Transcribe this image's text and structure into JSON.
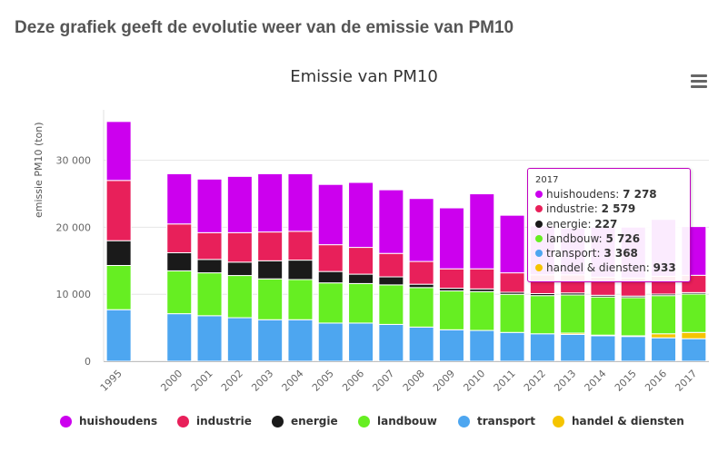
{
  "page": {
    "heading": "Deze grafiek geeft de evolutie weer van de emissie van PM10"
  },
  "chart_data": {
    "type": "bar",
    "stacked": true,
    "title": "Emissie van PM10",
    "ylabel": "emissie PM10 (ton)",
    "xlabel": "",
    "ylim": [
      0,
      37000
    ],
    "yticks": [
      0,
      10000,
      20000,
      30000
    ],
    "ytick_labels": [
      "0",
      "10 000",
      "20 000",
      "30 000"
    ],
    "grid": true,
    "legend_position": "bottom",
    "categories": [
      "1995",
      "",
      "2000",
      "2001",
      "2002",
      "2003",
      "2004",
      "2005",
      "2006",
      "2007",
      "2008",
      "2009",
      "2010",
      "2011",
      "2012",
      "2013",
      "2014",
      "2015",
      "2016",
      "2017"
    ],
    "series": [
      {
        "name": "transport",
        "color": "#4da6f0",
        "values": [
          7700,
          null,
          7100,
          6800,
          6500,
          6200,
          6200,
          5700,
          5700,
          5500,
          5100,
          4700,
          4600,
          4300,
          4100,
          4000,
          3800,
          3700,
          3500,
          3368
        ]
      },
      {
        "name": "handel & diensten",
        "color": "#f5c400",
        "values": [
          0,
          null,
          0,
          0,
          0,
          0,
          0,
          0,
          0,
          0,
          0,
          0,
          0,
          0,
          0,
          200,
          100,
          100,
          600,
          933
        ]
      },
      {
        "name": "landbouw",
        "color": "#66ee22",
        "values": [
          6600,
          null,
          6400,
          6400,
          6300,
          6100,
          6000,
          6000,
          5900,
          5900,
          5900,
          5800,
          5800,
          5700,
          5700,
          5700,
          5700,
          5700,
          5700,
          5726
        ]
      },
      {
        "name": "energie",
        "color": "#1a1a1a",
        "values": [
          3700,
          null,
          2700,
          2000,
          2000,
          2700,
          2900,
          1700,
          1400,
          1200,
          500,
          400,
          400,
          300,
          300,
          300,
          250,
          230,
          230,
          227
        ]
      },
      {
        "name": "industrie",
        "color": "#e8205a",
        "values": [
          9000,
          null,
          4300,
          4000,
          4400,
          4300,
          4300,
          4000,
          4000,
          3500,
          3400,
          2900,
          3000,
          2900,
          2800,
          2700,
          2700,
          2700,
          2650,
          2579
        ]
      },
      {
        "name": "huishoudens",
        "color": "#cc00ee",
        "values": [
          8800,
          null,
          7500,
          8000,
          8400,
          8700,
          8600,
          9000,
          9700,
          9500,
          9400,
          9100,
          11200,
          8600,
          7300,
          7000,
          7500,
          7600,
          8500,
          7278
        ]
      }
    ],
    "tooltip": {
      "title": "2017",
      "rows": [
        {
          "label": "huishoudens",
          "value": "7 278",
          "color": "#cc00ee"
        },
        {
          "label": "industrie",
          "value": "2 579",
          "color": "#e8205a"
        },
        {
          "label": "energie",
          "value": "227",
          "color": "#1a1a1a"
        },
        {
          "label": "landbouw",
          "value": "5 726",
          "color": "#66ee22"
        },
        {
          "label": "transport",
          "value": "3 368",
          "color": "#4da6f0"
        },
        {
          "label": "handel & diensten",
          "value": "933",
          "color": "#f5c400"
        }
      ],
      "highlight_category": "2017"
    }
  },
  "legend": {
    "items": [
      {
        "label": "huishoudens",
        "color": "#cc00ee"
      },
      {
        "label": "industrie",
        "color": "#e8205a"
      },
      {
        "label": "energie",
        "color": "#1a1a1a"
      },
      {
        "label": "landbouw",
        "color": "#66ee22"
      },
      {
        "label": "transport",
        "color": "#4da6f0"
      },
      {
        "label": "handel & diensten",
        "color": "#f5c400"
      }
    ]
  },
  "menu": {
    "icon": "hamburger-menu-icon"
  }
}
